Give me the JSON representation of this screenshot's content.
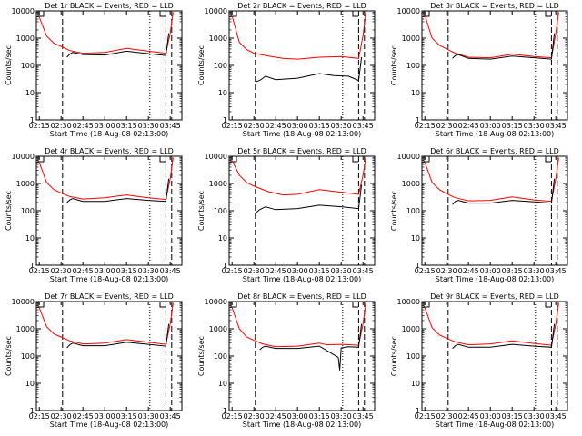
{
  "colors": {
    "events": "#000000",
    "lld": "#ff0000",
    "axis": "#000000",
    "background": "#ffffff"
  },
  "shared": {
    "ylabel": "Counts/sec",
    "xlabel": "Start Time (18-Aug-08 02:13:00)",
    "xticks": [
      "02:15",
      "02:30",
      "02:45",
      "03:00",
      "03:15",
      "03:30",
      "03:45"
    ],
    "yticks": [
      "1",
      "10",
      "100",
      "1000",
      "10000"
    ]
  },
  "chart_data": [
    {
      "type": "line",
      "title": "Det 1r BLACK = Events, RED = LLD",
      "yscale": "log",
      "ylim": [
        1,
        10000
      ],
      "xlim": [
        "02:13",
        "03:53"
      ],
      "series": [
        {
          "name": "LLD",
          "x": [
            "02:15",
            "02:20",
            "02:25",
            "02:30",
            "02:36",
            "02:45",
            "03:00",
            "03:15",
            "03:30",
            "03:42",
            "03:45",
            "03:47"
          ],
          "values": [
            6000,
            1200,
            650,
            500,
            350,
            280,
            300,
            420,
            330,
            280,
            1500,
            9000
          ]
        },
        {
          "name": "Events",
          "x": [
            "02:34",
            "02:36",
            "02:38",
            "02:45",
            "03:00",
            "03:15",
            "03:30",
            "03:42",
            "03:44"
          ],
          "values": [
            200,
            260,
            300,
            250,
            240,
            330,
            270,
            230,
            1500
          ]
        }
      ]
    },
    {
      "type": "line",
      "title": "Det 2r BLACK = Events, RED = LLD",
      "yscale": "log",
      "ylim": [
        1,
        10000
      ],
      "xlim": [
        "02:13",
        "03:53"
      ],
      "series": [
        {
          "name": "LLD",
          "x": [
            "02:15",
            "02:20",
            "02:25",
            "02:30",
            "02:40",
            "02:50",
            "03:00",
            "03:15",
            "03:30",
            "03:42",
            "03:45",
            "03:47"
          ],
          "values": [
            6500,
            700,
            380,
            280,
            220,
            180,
            170,
            200,
            210,
            180,
            1200,
            9000
          ]
        },
        {
          "name": "Events",
          "x": [
            "02:31",
            "02:34",
            "02:38",
            "02:45",
            "03:00",
            "03:15",
            "03:25",
            "03:35",
            "03:42",
            "03:44"
          ],
          "values": [
            25,
            28,
            40,
            30,
            34,
            50,
            42,
            40,
            28,
            200
          ]
        }
      ]
    },
    {
      "type": "line",
      "title": "Det 3r BLACK = Events, RED = LLD",
      "yscale": "log",
      "ylim": [
        1,
        10000
      ],
      "xlim": [
        "02:13",
        "03:53"
      ],
      "series": [
        {
          "name": "LLD",
          "x": [
            "02:15",
            "02:20",
            "02:25",
            "02:30",
            "02:36",
            "02:45",
            "03:00",
            "03:15",
            "03:30",
            "03:42",
            "03:45",
            "03:47"
          ],
          "values": [
            7000,
            1000,
            550,
            400,
            280,
            200,
            190,
            260,
            210,
            190,
            1500,
            9000
          ]
        },
        {
          "name": "Events",
          "x": [
            "02:34",
            "02:36",
            "02:38",
            "02:45",
            "03:00",
            "03:15",
            "03:30",
            "03:42",
            "03:44"
          ],
          "values": [
            180,
            230,
            250,
            180,
            170,
            220,
            190,
            170,
            1500
          ]
        }
      ]
    },
    {
      "type": "line",
      "title": "Det 4r BLACK = Events, RED = LLD",
      "yscale": "log",
      "ylim": [
        1,
        10000
      ],
      "xlim": [
        "02:13",
        "03:53"
      ],
      "series": [
        {
          "name": "LLD",
          "x": [
            "02:15",
            "02:20",
            "02:25",
            "02:30",
            "02:36",
            "02:45",
            "03:00",
            "03:15",
            "03:30",
            "03:42",
            "03:45",
            "03:47"
          ],
          "values": [
            6000,
            1100,
            600,
            450,
            330,
            270,
            300,
            380,
            300,
            260,
            1500,
            9000
          ]
        },
        {
          "name": "Events",
          "x": [
            "02:34",
            "02:36",
            "02:38",
            "02:45",
            "03:00",
            "03:15",
            "03:30",
            "03:42",
            "03:44"
          ],
          "values": [
            200,
            250,
            280,
            220,
            220,
            280,
            240,
            220,
            1500
          ]
        }
      ]
    },
    {
      "type": "line",
      "title": "Det 5r BLACK = Events, RED = LLD",
      "yscale": "log",
      "ylim": [
        1,
        10000
      ],
      "xlim": [
        "02:13",
        "03:53"
      ],
      "series": [
        {
          "name": "LLD",
          "x": [
            "02:15",
            "02:20",
            "02:25",
            "02:30",
            "02:40",
            "02:50",
            "03:00",
            "03:15",
            "03:30",
            "03:42",
            "03:45",
            "03:47"
          ],
          "values": [
            7000,
            2000,
            1100,
            800,
            500,
            380,
            400,
            600,
            480,
            400,
            2000,
            9000
          ]
        },
        {
          "name": "Events",
          "x": [
            "02:31",
            "02:34",
            "02:38",
            "02:45",
            "03:00",
            "03:15",
            "03:30",
            "03:42",
            "03:44"
          ],
          "values": [
            80,
            110,
            140,
            110,
            120,
            160,
            140,
            120,
            900
          ]
        }
      ]
    },
    {
      "type": "line",
      "title": "Det 6r BLACK = Events, RED = LLD",
      "yscale": "log",
      "ylim": [
        1,
        10000
      ],
      "xlim": [
        "02:13",
        "03:53"
      ],
      "series": [
        {
          "name": "LLD",
          "x": [
            "02:15",
            "02:20",
            "02:25",
            "02:30",
            "02:36",
            "02:45",
            "03:00",
            "03:15",
            "03:30",
            "03:42",
            "03:45",
            "03:47"
          ],
          "values": [
            6000,
            1100,
            600,
            420,
            300,
            230,
            240,
            320,
            250,
            220,
            1500,
            9000
          ]
        },
        {
          "name": "Events",
          "x": [
            "02:34",
            "02:36",
            "02:38",
            "02:45",
            "03:00",
            "03:15",
            "03:30",
            "03:42",
            "03:44"
          ],
          "values": [
            170,
            220,
            240,
            190,
            190,
            240,
            210,
            190,
            1500
          ]
        }
      ]
    },
    {
      "type": "line",
      "title": "Det 7r BLACK = Events, RED = LLD",
      "yscale": "log",
      "ylim": [
        1,
        10000
      ],
      "xlim": [
        "02:13",
        "03:53"
      ],
      "series": [
        {
          "name": "LLD",
          "x": [
            "02:15",
            "02:20",
            "02:25",
            "02:30",
            "02:36",
            "02:45",
            "03:00",
            "03:15",
            "03:30",
            "03:42",
            "03:45",
            "03:47"
          ],
          "values": [
            6000,
            1200,
            650,
            500,
            360,
            280,
            300,
            400,
            320,
            270,
            1500,
            9000
          ]
        },
        {
          "name": "Events",
          "x": [
            "02:34",
            "02:36",
            "02:38",
            "02:45",
            "03:00",
            "03:15",
            "03:30",
            "03:42",
            "03:44"
          ],
          "values": [
            200,
            260,
            300,
            240,
            240,
            320,
            270,
            230,
            1500
          ]
        }
      ]
    },
    {
      "type": "line",
      "title": "Det 8r BLACK = Events, RED = LLD",
      "yscale": "log",
      "ylim": [
        1,
        10000
      ],
      "xlim": [
        "02:13",
        "03:53"
      ],
      "series": [
        {
          "name": "LLD",
          "x": [
            "02:15",
            "02:20",
            "02:25",
            "02:30",
            "02:36",
            "02:45",
            "03:00",
            "03:15",
            "03:20",
            "03:30",
            "03:42",
            "03:45",
            "03:47"
          ],
          "values": [
            6000,
            1000,
            500,
            380,
            280,
            220,
            230,
            300,
            260,
            270,
            250,
            1500,
            9000
          ]
        },
        {
          "name": "Events",
          "x": [
            "02:34",
            "02:36",
            "02:38",
            "02:45",
            "03:00",
            "03:15",
            "03:28",
            "03:29",
            "03:30",
            "03:35",
            "03:42",
            "03:44"
          ],
          "values": [
            170,
            210,
            230,
            190,
            190,
            230,
            90,
            30,
            200,
            220,
            210,
            1500
          ]
        }
      ]
    },
    {
      "type": "line",
      "title": "Det 9r BLACK = Events, RED = LLD",
      "yscale": "log",
      "ylim": [
        1,
        10000
      ],
      "xlim": [
        "02:13",
        "03:53"
      ],
      "series": [
        {
          "name": "LLD",
          "x": [
            "02:15",
            "02:20",
            "02:25",
            "02:30",
            "02:36",
            "02:45",
            "03:00",
            "03:15",
            "03:30",
            "03:42",
            "03:45",
            "03:47"
          ],
          "values": [
            6000,
            1100,
            600,
            450,
            330,
            260,
            280,
            360,
            290,
            250,
            1500,
            9000
          ]
        },
        {
          "name": "Events",
          "x": [
            "02:34",
            "02:36",
            "02:38",
            "02:45",
            "03:00",
            "03:15",
            "03:30",
            "03:42",
            "03:44"
          ],
          "values": [
            190,
            240,
            270,
            210,
            210,
            270,
            230,
            210,
            1500
          ]
        }
      ]
    }
  ]
}
